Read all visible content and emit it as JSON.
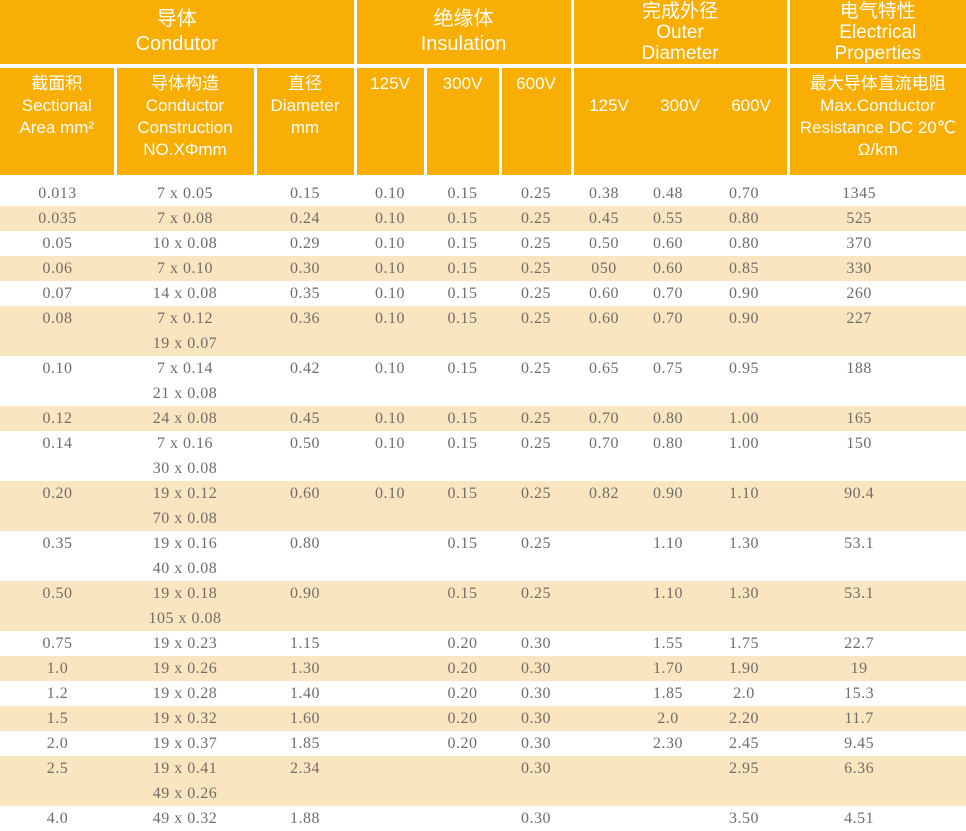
{
  "colors": {
    "header_bg": "#F8AE02",
    "header_text": "#FFFFFF",
    "row_alt_bg": "#FAE5C1",
    "row_bg": "#FFFFFF",
    "body_text": "#6F6D68"
  },
  "header": {
    "groups": [
      {
        "label": "导体\nCondutor"
      },
      {
        "label": "绝缘体\nInsulation"
      },
      {
        "label": "完成外径\nOuter\nDiameter"
      },
      {
        "label": "电气特性\nElectrical\nProperties"
      }
    ],
    "sub": {
      "sectional_area": "截面积\nSectional\nArea mm²",
      "construction": "导体构造\nConductor\nConstruction\nNO.XΦmm",
      "diameter": "直径\nDiameter\nmm",
      "insulation_125": "125V",
      "insulation_300": "300V",
      "insulation_600": "600V",
      "od_125": "125V",
      "od_300": "300V",
      "od_600": "600V",
      "resistance": "最大导体直流电阻\nMax.Conductor\nResistance DC 20℃\nΩ/km"
    }
  },
  "rows": [
    {
      "area": "0.013",
      "construction": "7 x 0.05",
      "diameter": "0.15",
      "ins125": "0.10",
      "ins300": "0.15",
      "ins600": "0.25",
      "od125": "0.38",
      "od300": "0.48",
      "od600": "0.70",
      "resistance": "1345"
    },
    {
      "area": "0.035",
      "construction": "7 x 0.08",
      "diameter": "0.24",
      "ins125": "0.10",
      "ins300": "0.15",
      "ins600": "0.25",
      "od125": "0.45",
      "od300": "0.55",
      "od600": "0.80",
      "resistance": "525"
    },
    {
      "area": "0.05",
      "construction": "10 x 0.08",
      "diameter": "0.29",
      "ins125": "0.10",
      "ins300": "0.15",
      "ins600": "0.25",
      "od125": "0.50",
      "od300": "0.60",
      "od600": "0.80",
      "resistance": "370"
    },
    {
      "area": "0.06",
      "construction": "7 x 0.10",
      "diameter": "0.30",
      "ins125": "0.10",
      "ins300": "0.15",
      "ins600": "0.25",
      "od125": "050",
      "od300": "0.60",
      "od600": "0.85",
      "resistance": "330"
    },
    {
      "area": "0.07",
      "construction": "14 x 0.08",
      "diameter": "0.35",
      "ins125": "0.10",
      "ins300": "0.15",
      "ins600": "0.25",
      "od125": "0.60",
      "od300": "0.70",
      "od600": "0.90",
      "resistance": "260"
    },
    {
      "area": "0.08",
      "construction": "7 x 0.12\n19 x 0.07",
      "diameter": "0.36",
      "ins125": "0.10",
      "ins300": "0.15",
      "ins600": "0.25",
      "od125": "0.60",
      "od300": "0.70",
      "od600": "0.90",
      "resistance": "227"
    },
    {
      "area": "0.10",
      "construction": "7 x 0.14\n21 x 0.08",
      "diameter": "0.42",
      "ins125": "0.10",
      "ins300": "0.15",
      "ins600": "0.25",
      "od125": "0.65",
      "od300": "0.75",
      "od600": "0.95",
      "resistance": "188"
    },
    {
      "area": "0.12",
      "construction": "24 x 0.08",
      "diameter": "0.45",
      "ins125": "0.10",
      "ins300": "0.15",
      "ins600": "0.25",
      "od125": "0.70",
      "od300": "0.80",
      "od600": "1.00",
      "resistance": "165"
    },
    {
      "area": "0.14",
      "construction": "7 x 0.16\n30 x 0.08",
      "diameter": "0.50",
      "ins125": "0.10",
      "ins300": "0.15",
      "ins600": "0.25",
      "od125": "0.70",
      "od300": "0.80",
      "od600": "1.00",
      "resistance": "150"
    },
    {
      "area": "0.20",
      "construction": "19 x 0.12\n70 x 0.08",
      "diameter": "0.60",
      "ins125": "0.10",
      "ins300": "0.15",
      "ins600": "0.25",
      "od125": "0.82",
      "od300": "0.90",
      "od600": "1.10",
      "resistance": "90.4"
    },
    {
      "area": "0.35",
      "construction": "19 x 0.16\n40 x 0.08",
      "diameter": "0.80",
      "ins125": "",
      "ins300": "0.15",
      "ins600": "0.25",
      "od125": "",
      "od300": "1.10",
      "od600": "1.30",
      "resistance": "53.1"
    },
    {
      "area": "0.50",
      "construction": "19 x 0.18\n105 x 0.08",
      "diameter": "0.90",
      "ins125": "",
      "ins300": "0.15",
      "ins600": "0.25",
      "od125": "",
      "od300": "1.10",
      "od600": "1.30",
      "resistance": "53.1"
    },
    {
      "area": "0.75",
      "construction": "19 x 0.23",
      "diameter": "1.15",
      "ins125": "",
      "ins300": "0.20",
      "ins600": "0.30",
      "od125": "",
      "od300": "1.55",
      "od600": "1.75",
      "resistance": "22.7"
    },
    {
      "area": "1.0",
      "construction": "19 x 0.26",
      "diameter": "1.30",
      "ins125": "",
      "ins300": "0.20",
      "ins600": "0.30",
      "od125": "",
      "od300": "1.70",
      "od600": "1.90",
      "resistance": "19"
    },
    {
      "area": "1.2",
      "construction": "19 x 0.28",
      "diameter": "1.40",
      "ins125": "",
      "ins300": "0.20",
      "ins600": "0.30",
      "od125": "",
      "od300": "1.85",
      "od600": "2.0",
      "resistance": "15.3"
    },
    {
      "area": "1.5",
      "construction": "19 x 0.32",
      "diameter": "1.60",
      "ins125": "",
      "ins300": "0.20",
      "ins600": "0.30",
      "od125": "",
      "od300": "2.0",
      "od600": "2.20",
      "resistance": "11.7"
    },
    {
      "area": "2.0",
      "construction": "19 x 0.37",
      "diameter": "1.85",
      "ins125": "",
      "ins300": "0.20",
      "ins600": "0.30",
      "od125": "",
      "od300": "2.30",
      "od600": "2.45",
      "resistance": "9.45"
    },
    {
      "area": "2.5",
      "construction": "19 x 0.41\n49 x 0.26",
      "diameter": "2.34",
      "ins125": "",
      "ins300": "",
      "ins600": "0.30",
      "od125": "",
      "od300": "",
      "od600": "2.95",
      "resistance": "6.36"
    },
    {
      "area": "4.0",
      "construction": "49 x 0.32",
      "diameter": "1.88",
      "ins125": "",
      "ins300": "",
      "ins600": "0.30",
      "od125": "",
      "od300": "",
      "od600": "3.50",
      "resistance": "4.51"
    }
  ]
}
